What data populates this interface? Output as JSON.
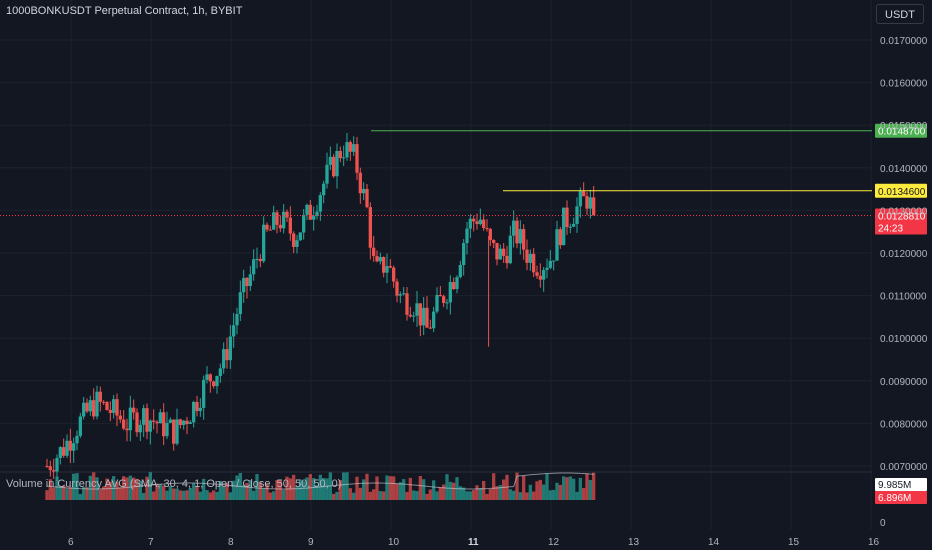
{
  "header": {
    "symbol_title": "1000BONKUSDT Perpetual Contract, 1h, BYBIT",
    "currency_button": "USDT"
  },
  "volume_legend": "Volume in Currency AVG (SMA, 30, 4, 1, Open / Close, 50, 50, 50, 0)",
  "colors": {
    "background": "#131722",
    "up": "#26a69a",
    "down": "#ef5350",
    "resistance_high": "#4caf50",
    "resistance_mid": "#ffeb3b",
    "current_price": "#f23645",
    "volume_ma": "#d1d4dc"
  },
  "chart_data": {
    "type": "candlestick",
    "x_ticks": [
      "6",
      "7",
      "8",
      "9",
      "10",
      "11",
      "12",
      "13",
      "14",
      "15",
      "16"
    ],
    "x_tick_bold": "11",
    "y_ticks": [
      "0.0170000",
      "0.0160000",
      "0.0150000",
      "0.0140000",
      "0.0130000",
      "0.0120000",
      "0.0110000",
      "0.0100000",
      "0.0090000",
      "0.0080000",
      "0.0070000"
    ],
    "ylim": [
      0.0068,
      0.0176
    ],
    "horizontal_lines": [
      {
        "price": 0.01487,
        "label": "0.0148700",
        "color": "#4caf50",
        "start_day": 9.75
      },
      {
        "price": 0.01346,
        "label": "0.0134600",
        "color": "#ffeb3b",
        "start_day": 11.4
      }
    ],
    "current_price": {
      "price": 0.012881,
      "label": "0.0128810",
      "countdown": "24:23"
    },
    "candles_approx": [
      [
        5.7,
        0.007
      ],
      [
        5.9,
        0.0074
      ],
      [
        6.1,
        0.008
      ],
      [
        6.3,
        0.0085
      ],
      [
        6.5,
        0.0083
      ],
      [
        6.7,
        0.008
      ],
      [
        6.9,
        0.0082
      ],
      [
        7.1,
        0.008
      ],
      [
        7.3,
        0.0078
      ],
      [
        7.5,
        0.0083
      ],
      [
        7.7,
        0.009
      ],
      [
        7.9,
        0.0094
      ],
      [
        8.1,
        0.0108
      ],
      [
        8.25,
        0.0115
      ],
      [
        8.4,
        0.0123
      ],
      [
        8.6,
        0.0128
      ],
      [
        8.8,
        0.0124
      ],
      [
        9.0,
        0.013
      ],
      [
        9.2,
        0.0138
      ],
      [
        9.4,
        0.0145
      ],
      [
        9.55,
        0.0142
      ],
      [
        9.7,
        0.013
      ],
      [
        9.8,
        0.0115
      ],
      [
        9.95,
        0.0118
      ],
      [
        10.1,
        0.011
      ],
      [
        10.3,
        0.0108
      ],
      [
        10.45,
        0.0102
      ],
      [
        10.6,
        0.0108
      ],
      [
        10.8,
        0.0115
      ],
      [
        10.95,
        0.0126
      ],
      [
        11.1,
        0.0129
      ],
      [
        11.25,
        0.0121
      ],
      [
        11.4,
        0.0119
      ],
      [
        11.55,
        0.0125
      ],
      [
        11.7,
        0.012
      ],
      [
        11.85,
        0.0117
      ],
      [
        12.0,
        0.0119
      ],
      [
        12.15,
        0.0127
      ],
      [
        12.3,
        0.013
      ],
      [
        12.45,
        0.0133
      ],
      [
        12.55,
        0.01288
      ]
    ],
    "volume_axis": {
      "ticks": [
        "0"
      ],
      "labels": [
        "9.985M",
        "6.896M"
      ]
    }
  }
}
